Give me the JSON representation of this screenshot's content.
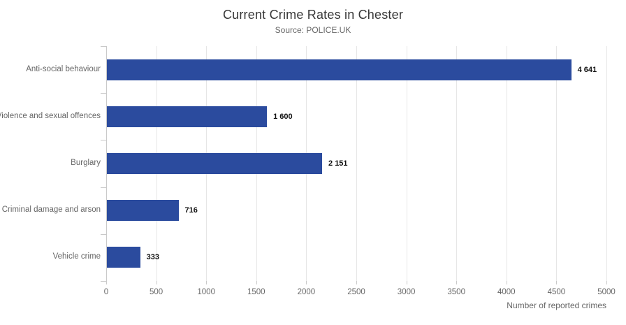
{
  "chart_data": {
    "type": "bar",
    "orientation": "horizontal",
    "title": "Current Crime Rates in Chester",
    "subtitle": "Source: POLICE.UK",
    "categories": [
      "Anti-social behaviour",
      "Violence and sexual offences",
      "Burglary",
      "Criminal damage and arson",
      "Vehicle crime"
    ],
    "values": [
      4641,
      1600,
      2151,
      716,
      333
    ],
    "value_labels": [
      "4 641",
      "1 600",
      "2 151",
      "716",
      "333"
    ],
    "xlabel": "Number of reported crimes",
    "ylabel": "",
    "xlim": [
      0,
      5000
    ],
    "x_ticks": [
      0,
      500,
      1000,
      1500,
      2000,
      2500,
      3000,
      3500,
      4000,
      4500,
      5000
    ],
    "grid": true,
    "legend": "none",
    "colors": {
      "bar": "#2b4b9e",
      "gridline": "#e6e6e6",
      "axis": "#c9c9c9",
      "title_text": "#373737",
      "muted_text": "#666666",
      "value_text": "#111111"
    }
  }
}
